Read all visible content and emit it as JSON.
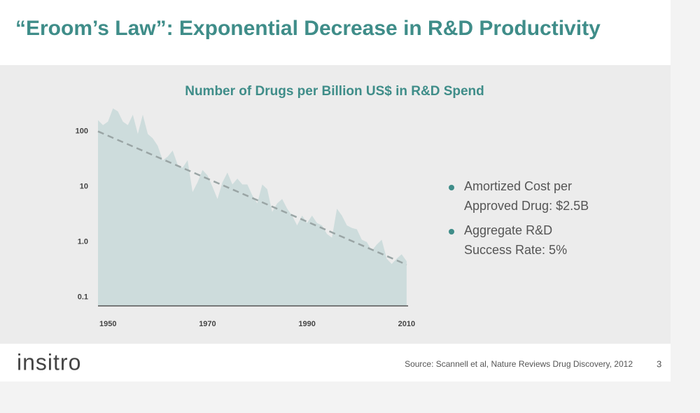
{
  "slide_title": "“Eroom’s Law”: Exponential Decrease in R&D Productivity",
  "chart_data": {
    "type": "area",
    "title": "Number of Drugs per Billion US$ in R&D Spend",
    "log_y": true,
    "color": "#cddcdc",
    "x": [
      1948,
      1949,
      1950,
      1951,
      1952,
      1953,
      1954,
      1955,
      1956,
      1957,
      1958,
      1959,
      1960,
      1961,
      1962,
      1963,
      1964,
      1965,
      1966,
      1967,
      1968,
      1969,
      1970,
      1971,
      1972,
      1973,
      1974,
      1975,
      1976,
      1977,
      1978,
      1979,
      1980,
      1981,
      1982,
      1983,
      1984,
      1985,
      1986,
      1987,
      1988,
      1989,
      1990,
      1991,
      1992,
      1993,
      1994,
      1995,
      1996,
      1997,
      1998,
      1999,
      2000,
      2001,
      2002,
      2003,
      2004,
      2005,
      2006,
      2007,
      2008,
      2009,
      2010
    ],
    "values": [
      160,
      130,
      150,
      260,
      230,
      150,
      130,
      200,
      90,
      200,
      90,
      75,
      55,
      30,
      35,
      45,
      25,
      22,
      30,
      8,
      12,
      20,
      16,
      10,
      6,
      12,
      18,
      11,
      14,
      11,
      11,
      7,
      5,
      11,
      9,
      3.5,
      5,
      6,
      4,
      3,
      2,
      3,
      2.2,
      3,
      2.2,
      2,
      1.4,
      1.2,
      4,
      3,
      2,
      1.8,
      1.7,
      1.1,
      1,
      0.7,
      0.9,
      1.1,
      0.5,
      0.4,
      0.5,
      0.6,
      0.45
    ],
    "trend": {
      "x": [
        1948,
        2010
      ],
      "values": [
        100,
        0.39
      ],
      "color": "#9aa5a5"
    },
    "xlim": [
      1948,
      2011
    ],
    "ylim": [
      0.07,
      300
    ],
    "xticks": [
      1950,
      1970,
      1990,
      2010
    ],
    "yticks": [
      100,
      10,
      {
        "value": 1,
        "label": "1.0"
      },
      0.1
    ]
  },
  "bullets": [
    "Amortized Cost per",
    "Approved Drug: $2.5B",
    "Aggregate R&D",
    "Success Rate: 5%"
  ],
  "logo": "insitro",
  "source": "Source: Scannell et al, Nature Reviews Drug Discovery, 2012",
  "page_number": "3"
}
